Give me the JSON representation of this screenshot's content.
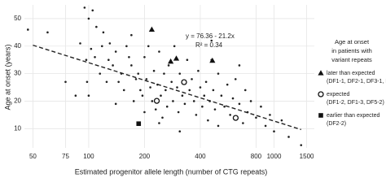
{
  "chart_data": {
    "type": "scatter",
    "x_label": "Estimated progenitor allele length (number of CTG repeats)",
    "y_label": "Age at onset (years)",
    "log_x": true,
    "grid": true,
    "xlim": [
      45,
      1650
    ],
    "ylim": [
      3,
      55
    ],
    "xticks": [
      50,
      75,
      100,
      200,
      400,
      800,
      1000,
      1500
    ],
    "yticks": [
      10,
      20,
      30,
      40,
      50
    ],
    "equation": "y = 76.36 - 21.2x",
    "r_squared": "R² = 0.34",
    "fit": {
      "intercept": 76.36,
      "slope": -21.2,
      "x_range": [
        50,
        1400
      ]
    },
    "legend_title": [
      "Age at onset",
      "in patients with",
      "variant repeats"
    ],
    "series": [
      {
        "marker": "dot",
        "color": "#222222",
        "x": [
          47,
          60,
          95,
          90,
          105,
          100,
          103,
          110,
          108,
          97,
          98,
          100,
          115,
          120,
          118,
          130,
          128,
          125,
          135,
          140,
          145,
          150,
          155,
          160,
          165,
          170,
          170,
          175,
          180,
          185,
          190,
          195,
          200,
          200,
          205,
          210,
          215,
          220,
          225,
          230,
          235,
          240,
          245,
          250,
          255,
          260,
          265,
          270,
          280,
          285,
          290,
          300,
          305,
          310,
          320,
          330,
          340,
          350,
          360,
          370,
          380,
          390,
          400,
          410,
          420,
          430,
          440,
          450,
          460,
          470,
          480,
          500,
          520,
          540,
          560,
          580,
          600,
          620,
          650,
          680,
          700,
          720,
          750,
          800,
          850,
          900,
          950,
          1000,
          1100,
          1200,
          1400,
          75,
          85,
          650,
          460,
          140,
          310,
          240,
          500
        ],
        "values": [
          46,
          45,
          54,
          41,
          53,
          50,
          39,
          47,
          36,
          35,
          27,
          22,
          30,
          45,
          40,
          41,
          35,
          27,
          33,
          38,
          27,
          30,
          24,
          40,
          36,
          33,
          44,
          20,
          28,
          30,
          24,
          22,
          36,
          16,
          28,
          40,
          25,
          20,
          31,
          17,
          26,
          38,
          22,
          14,
          30,
          24,
          18,
          33,
          27,
          20,
          40,
          25,
          16,
          30,
          22,
          19,
          35,
          24,
          28,
          20,
          15,
          31,
          25,
          18,
          22,
          27,
          13,
          20,
          35,
          24,
          17,
          30,
          22,
          18,
          26,
          15,
          21,
          28,
          19,
          12,
          24,
          16,
          20,
          14,
          18,
          11,
          15,
          9,
          13,
          7,
          4,
          27,
          22,
          33,
          42,
          19,
          9,
          12,
          11
        ]
      },
      {
        "marker": "triangle",
        "color": "#111111",
        "name": "later than expected",
        "detail": "(DF1-1, DF2-1, DF3-1, DF4-1)",
        "x": [
          219,
          277,
          297,
          465
        ],
        "values": [
          46,
          34.4,
          35.5,
          34.7
        ]
      },
      {
        "marker": "circle",
        "color": "#111111",
        "name": "expected",
        "detail": "(DF1-2, DF1-3, DF5-2)",
        "x": [
          327,
          233,
          621
        ],
        "values": [
          26.9,
          20.1,
          13.9
        ]
      },
      {
        "marker": "square",
        "color": "#111111",
        "name": "earlier than expected",
        "detail": "(DF2-2)",
        "x": [
          186
        ],
        "values": [
          11.8
        ]
      }
    ]
  }
}
